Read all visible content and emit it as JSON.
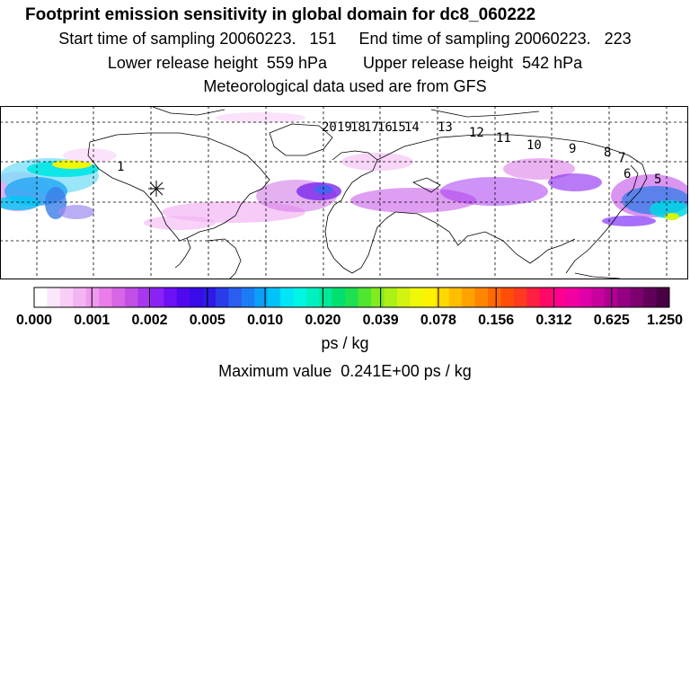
{
  "header": {
    "title": "Footprint emission sensitivity in global domain for dc8_060222",
    "line1": "Start time of sampling 20060223.   151     End time of sampling 20060223.   223",
    "line2": "Lower release height  559 hPa        Upper release height  542 hPa",
    "line3": "Meteorological data used are from GFS"
  },
  "map": {
    "track_labels": [
      "20",
      "19",
      "18",
      "17",
      "16",
      "15",
      "14",
      "13",
      "12",
      "11",
      "10",
      "9",
      "8",
      "7",
      "6",
      "5",
      "1"
    ],
    "colors": {
      "frame": "#000000",
      "grid": "#000000"
    }
  },
  "colorbar": {
    "tick_labels": [
      "0.000",
      "0.001",
      "0.002",
      "0.005",
      "0.010",
      "0.020",
      "0.039",
      "0.078",
      "0.156",
      "0.312",
      "0.625",
      "1.250"
    ],
    "colors": [
      "#ffffff",
      "#fce6fc",
      "#f8cef8",
      "#f3b4f3",
      "#ef9aef",
      "#e97de9",
      "#d765e6",
      "#c24ee6",
      "#a838ee",
      "#8a22f3",
      "#6c10f6",
      "#5008ee",
      "#3a0ae8",
      "#2d1ae6",
      "#2a3bea",
      "#2a5df0",
      "#1a7df5",
      "#0aa0f8",
      "#00c4f8",
      "#00e6f6",
      "#00f6e4",
      "#00f0c0",
      "#00e898",
      "#00e070",
      "#1ee050",
      "#50e630",
      "#80ec20",
      "#acf018",
      "#d2f410",
      "#f0f80a",
      "#fff200",
      "#ffd800",
      "#ffbe00",
      "#ffa200",
      "#ff8600",
      "#ff6a00",
      "#ff4e08",
      "#ff3a20",
      "#ff2040",
      "#ff0868",
      "#ff0090",
      "#f200a0",
      "#e000a8",
      "#c8009e",
      "#ae0090",
      "#940082",
      "#7c006e",
      "#62005a",
      "#4a0044"
    ],
    "units": "ps / kg"
  },
  "footer": {
    "max_value": "Maximum value  0.241E+00 ps / kg"
  }
}
